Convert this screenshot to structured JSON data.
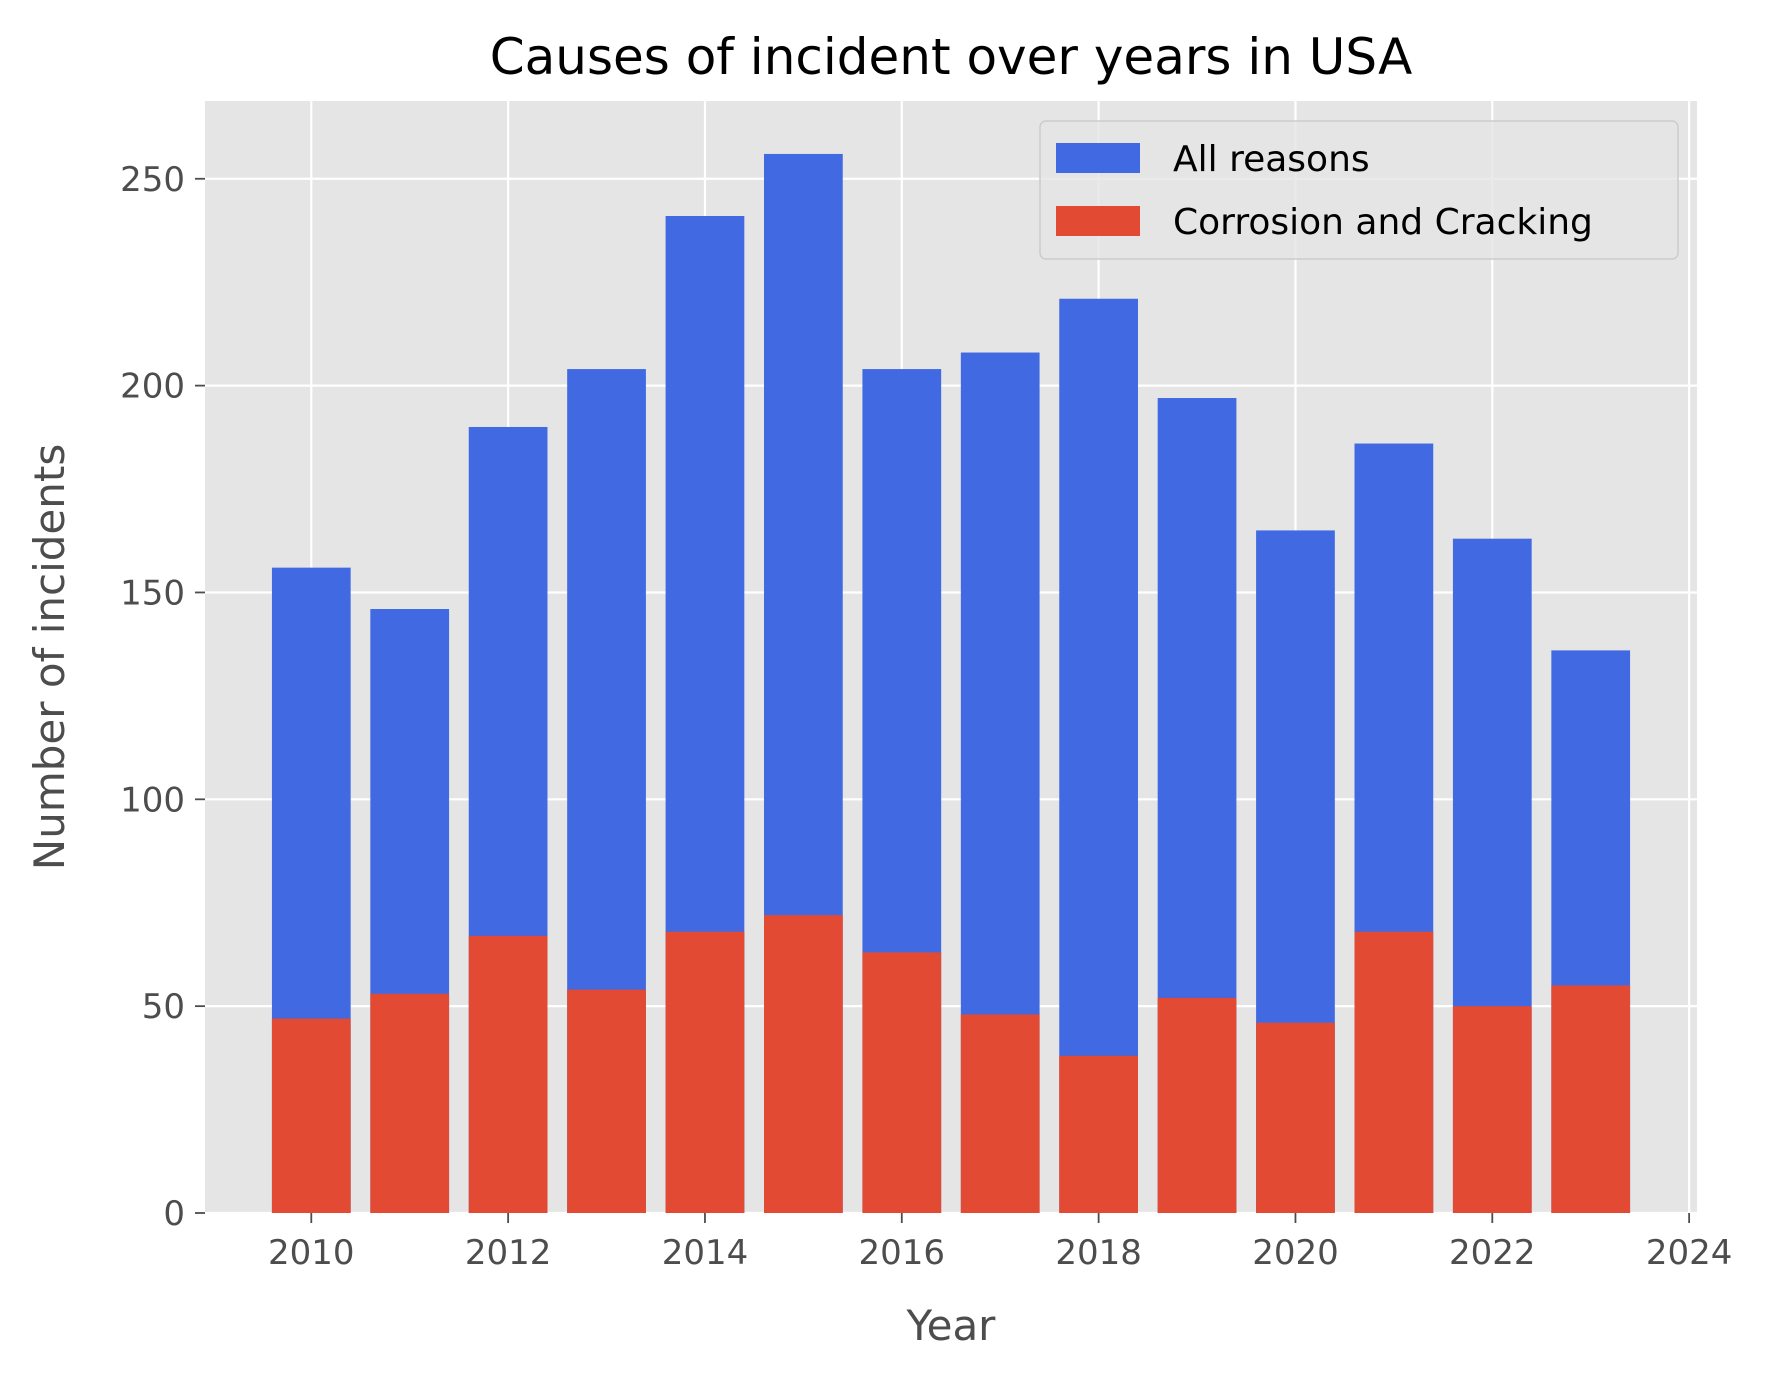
{
  "chart_data": {
    "type": "bar",
    "title": "Causes of incident over years in USA",
    "xlabel": "Year",
    "ylabel": "Number of incidents",
    "x": [
      2010,
      2011,
      2012,
      2013,
      2014,
      2015,
      2016,
      2017,
      2018,
      2019,
      2020,
      2021,
      2022,
      2023
    ],
    "series": [
      {
        "name": "All reasons",
        "color": "#4169e1",
        "values": [
          156,
          146,
          190,
          204,
          241,
          256,
          204,
          208,
          221,
          197,
          165,
          186,
          163,
          136
        ]
      },
      {
        "name": "Corrosion and Cracking",
        "color": "#e24a33",
        "values": [
          47,
          53,
          67,
          54,
          68,
          72,
          63,
          48,
          38,
          52,
          46,
          68,
          50,
          55
        ]
      }
    ],
    "overlay": true,
    "xlim": [
      2008.92,
      2024.08
    ],
    "ylim": [
      0,
      268.8
    ],
    "xticks": [
      "2010",
      "2012",
      "2014",
      "2016",
      "2018",
      "2020",
      "2022",
      "2024"
    ],
    "yticks": [
      "0",
      "50",
      "100",
      "150",
      "200",
      "250"
    ],
    "grid": true,
    "legend_position": "top-right",
    "plot_background": "#e5e5e5"
  }
}
